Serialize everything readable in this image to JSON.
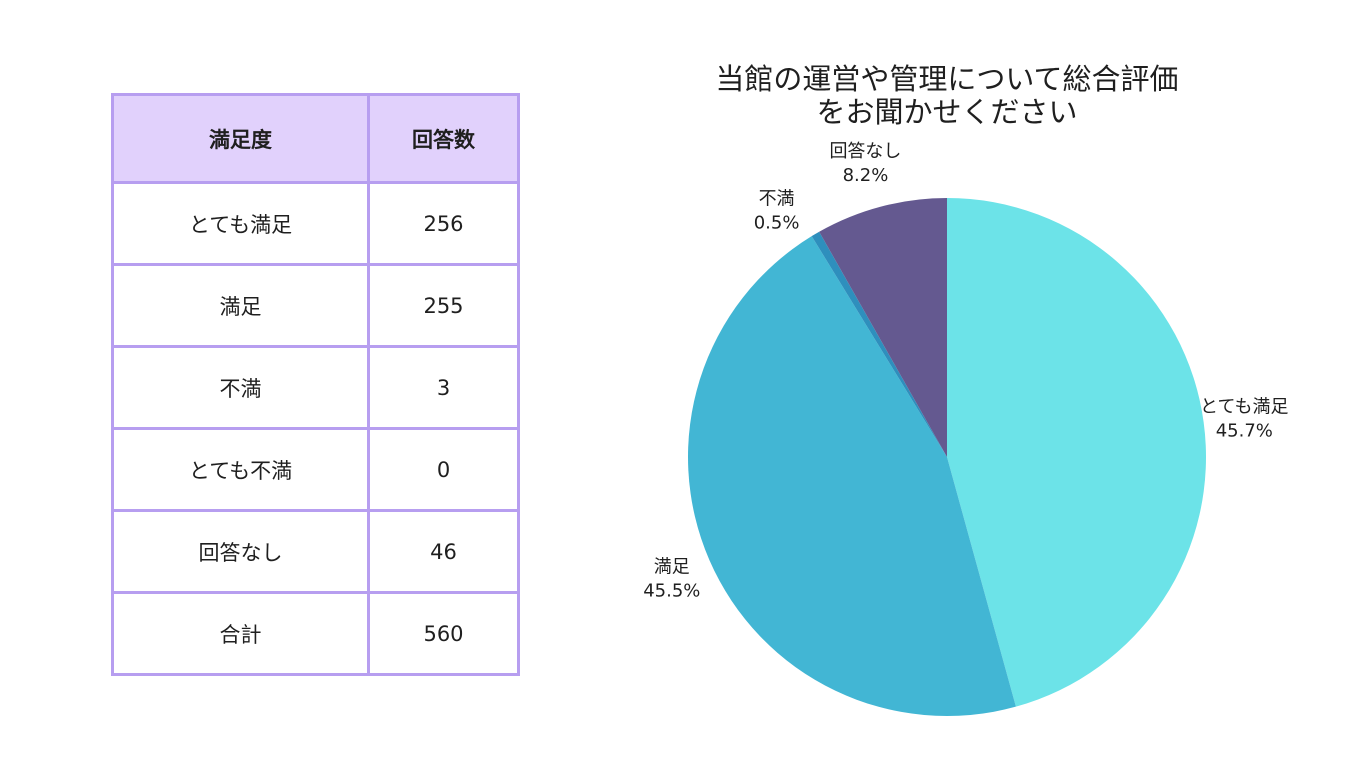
{
  "table": {
    "headers": [
      "満足度",
      "回答数"
    ],
    "rows": [
      [
        "とても満足",
        "256"
      ],
      [
        "満足",
        "255"
      ],
      [
        "不満",
        "3"
      ],
      [
        "とても不満",
        "0"
      ],
      [
        "回答なし",
        "46"
      ],
      [
        "合計",
        "560"
      ]
    ]
  },
  "chart_data": {
    "type": "pie",
    "title_lines": [
      "当館の運営や管理について総合評価",
      "をお聞かせください"
    ],
    "categories": [
      "とても満足",
      "満足",
      "不満",
      "回答なし"
    ],
    "values": [
      256,
      255,
      3,
      46
    ],
    "percent_labels": [
      "45.7%",
      "45.5%",
      "0.5%",
      "8.2%"
    ],
    "colors": [
      "#6ce3e8",
      "#42b6d4",
      "#2e8fbd",
      "#645990"
    ],
    "start_angle": "12 o'clock",
    "direction": "clockwise"
  }
}
